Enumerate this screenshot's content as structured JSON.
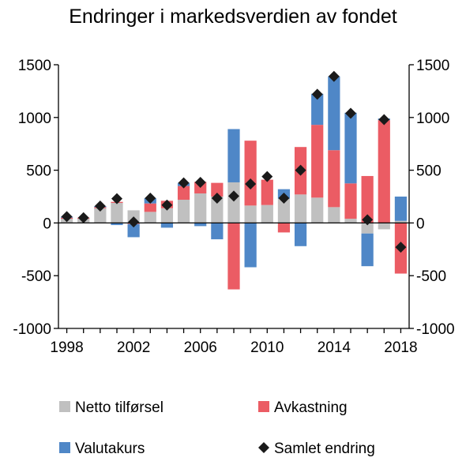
{
  "chart_data": {
    "type": "bar",
    "stacked": true,
    "title": "Endringer i markedsverdien av fondet",
    "x": [
      1998,
      1999,
      2000,
      2001,
      2002,
      2003,
      2004,
      2005,
      2006,
      2007,
      2008,
      2009,
      2010,
      2011,
      2012,
      2013,
      2014,
      2015,
      2016,
      2017,
      2018
    ],
    "x_tick_labels": [
      "1998",
      "2002",
      "2006",
      "2010",
      "2014",
      "2018"
    ],
    "ylim": [
      -1000,
      1500
    ],
    "y_ticks": [
      -1000,
      -500,
      0,
      500,
      1000,
      1500
    ],
    "y_tick_labels": [
      "-1000",
      "-500",
      "0",
      "500",
      "1000",
      "1500"
    ],
    "secondary_y_axis": true,
    "grid": false,
    "legend_position": "bottom",
    "series": [
      {
        "name": "Netto tilførsel",
        "kind": "bar",
        "color": "#c0c0c0",
        "values": [
          40,
          40,
          140,
          190,
          120,
          105,
          140,
          220,
          280,
          250,
          385,
          165,
          170,
          230,
          270,
          240,
          150,
          40,
          -100,
          -60,
          20
        ]
      },
      {
        "name": "Avkastning",
        "kind": "bar",
        "color": "#eb5c64",
        "values": [
          10,
          10,
          10,
          10,
          -10,
          80,
          70,
          130,
          110,
          130,
          -630,
          615,
          240,
          -90,
          450,
          690,
          540,
          335,
          445,
          975,
          -480
        ]
      },
      {
        "name": "Valutakurs",
        "kind": "bar",
        "color": "#4f87c7",
        "values": [
          10,
          0,
          10,
          -20,
          -125,
          50,
          -45,
          30,
          -30,
          -155,
          505,
          -420,
          -5,
          90,
          -220,
          295,
          700,
          670,
          -310,
          15,
          230
        ]
      },
      {
        "name": "Samlet endring",
        "kind": "marker",
        "color": "#1a1a1a",
        "values": [
          60,
          50,
          160,
          230,
          10,
          235,
          170,
          380,
          385,
          235,
          255,
          370,
          440,
          235,
          500,
          1220,
          1390,
          1040,
          30,
          980,
          -230
        ]
      }
    ]
  }
}
